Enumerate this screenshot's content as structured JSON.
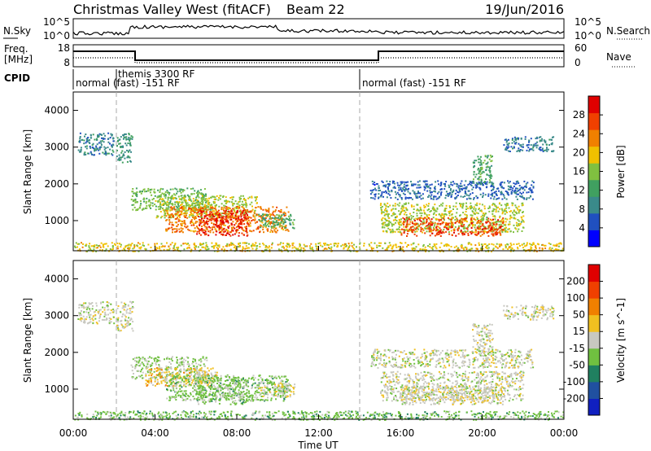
{
  "header": {
    "title": "Christmas Valley West (fitACF)",
    "beam": "Beam 22",
    "date": "19/Jun/2016"
  },
  "nsky_panel": {
    "label": "N.Sky",
    "left_ticks": [
      "10^5",
      "10^0"
    ],
    "right_label": "N.Search",
    "right_ticks": [
      "10^5",
      "10^0"
    ]
  },
  "freq_panel": {
    "label_line1": "Freq.",
    "label_line2": "[MHz]",
    "left_ticks": [
      "18",
      "8"
    ],
    "right_label": "Nave",
    "right_ticks": [
      "60",
      "0"
    ]
  },
  "cpid_panel": {
    "label": "CPID",
    "segments": [
      {
        "text": "normal (fast) -151 RF",
        "start_hour": 0
      },
      {
        "text": "themis 3300 RF",
        "start_hour": 2.6
      },
      {
        "text": "normal (fast) -151 RF",
        "start_hour": 14
      }
    ]
  },
  "power_colorbar": {
    "label": "Power [dB]",
    "ticks": [
      "4",
      "8",
      "12",
      "16",
      "20",
      "24",
      "28"
    ],
    "colors": [
      "#0000ff",
      "#2050c0",
      "#3a8a8a",
      "#40a060",
      "#80c040",
      "#f0c000",
      "#f08000",
      "#f04000",
      "#e00000"
    ]
  },
  "velocity_colorbar": {
    "label": "Velocity [m s^-1]",
    "ticks": [
      "200",
      "100",
      "50",
      "15",
      "-15",
      "-50",
      "-100",
      "-200"
    ],
    "colors": [
      "#1020c0",
      "#2050a0",
      "#208060",
      "#70c040",
      "#c8c8c0",
      "#f0c020",
      "#f08000",
      "#f04000",
      "#e00000"
    ]
  },
  "axes": {
    "ylabel": "Slant Range [km]",
    "yticks": [
      "1000",
      "2000",
      "3000",
      "4000"
    ],
    "xlabel": "Time UT",
    "xticks": [
      "00:00",
      "04:00",
      "08:00",
      "12:00",
      "16:00",
      "20:00",
      "00:00"
    ]
  },
  "chart_data": [
    {
      "type": "heatmap",
      "title": "",
      "xlabel": "",
      "ylabel": "Slant Range [km]",
      "xlim_hours": [
        0,
        24
      ],
      "ylim": [
        180,
        4500
      ],
      "colorbar": "Power [dB]",
      "clim": [
        0,
        30
      ],
      "regions": [
        {
          "t0": 0.2,
          "t1": 2.0,
          "r0": 2800,
          "r1": 3400,
          "value": 8
        },
        {
          "t0": 2.1,
          "t1": 2.9,
          "r0": 2600,
          "r1": 3400,
          "value": 10
        },
        {
          "t0": 2.8,
          "t1": 6.5,
          "r0": 1300,
          "r1": 1900,
          "value": 14
        },
        {
          "t0": 4.0,
          "t1": 9.0,
          "r0": 1100,
          "r1": 1700,
          "value": 16
        },
        {
          "t0": 4.5,
          "t1": 10.5,
          "r0": 700,
          "r1": 1400,
          "value": 22
        },
        {
          "t0": 6.0,
          "t1": 8.5,
          "r0": 600,
          "r1": 1300,
          "value": 27
        },
        {
          "t0": 9.0,
          "t1": 10.8,
          "r0": 800,
          "r1": 1200,
          "value": 12
        },
        {
          "t0": 14.5,
          "t1": 22.5,
          "r0": 1600,
          "r1": 2100,
          "value": 6
        },
        {
          "t0": 15.0,
          "t1": 22.0,
          "r0": 700,
          "r1": 1500,
          "value": 16
        },
        {
          "t0": 16.0,
          "t1": 21.0,
          "r0": 600,
          "r1": 1100,
          "value": 25
        },
        {
          "t0": 19.5,
          "t1": 20.5,
          "r0": 2000,
          "r1": 2800,
          "value": 12
        },
        {
          "t0": 21.0,
          "t1": 23.5,
          "r0": 2900,
          "r1": 3300,
          "value": 8
        },
        {
          "t0": 0.0,
          "t1": 24.0,
          "r0": 180,
          "r1": 420,
          "value": 18
        }
      ]
    },
    {
      "type": "heatmap",
      "title": "",
      "xlabel": "Time UT",
      "ylabel": "Slant Range [km]",
      "xlim_hours": [
        0,
        24
      ],
      "ylim": [
        180,
        4500
      ],
      "colorbar": "Velocity [m s^-1]",
      "clim": [
        -200,
        200
      ],
      "regions": [
        {
          "t0": 0.2,
          "t1": 2.0,
          "r0": 2800,
          "r1": 3400,
          "value": 0
        },
        {
          "t0": 2.1,
          "t1": 2.9,
          "r0": 2600,
          "r1": 3400,
          "value": 0
        },
        {
          "t0": 2.8,
          "t1": 6.5,
          "r0": 1300,
          "r1": 1900,
          "value": -30
        },
        {
          "t0": 3.5,
          "t1": 7.0,
          "r0": 1100,
          "r1": 1600,
          "value": 40
        },
        {
          "t0": 4.5,
          "t1": 10.5,
          "r0": 700,
          "r1": 1400,
          "value": -40
        },
        {
          "t0": 6.0,
          "t1": 8.5,
          "r0": 600,
          "r1": 1300,
          "value": -35
        },
        {
          "t0": 9.0,
          "t1": 10.8,
          "r0": 800,
          "r1": 1200,
          "value": 0
        },
        {
          "t0": 14.5,
          "t1": 22.5,
          "r0": 1600,
          "r1": 2100,
          "value": 0
        },
        {
          "t0": 15.0,
          "t1": 22.0,
          "r0": 700,
          "r1": 1500,
          "value": 0
        },
        {
          "t0": 16.0,
          "t1": 21.0,
          "r0": 600,
          "r1": 1100,
          "value": 5
        },
        {
          "t0": 19.5,
          "t1": 20.5,
          "r0": 2000,
          "r1": 2800,
          "value": 0
        },
        {
          "t0": 21.0,
          "t1": 23.5,
          "r0": 2900,
          "r1": 3300,
          "value": 0
        },
        {
          "t0": 0.0,
          "t1": 24.0,
          "r0": 180,
          "r1": 420,
          "value": -45
        }
      ]
    }
  ]
}
